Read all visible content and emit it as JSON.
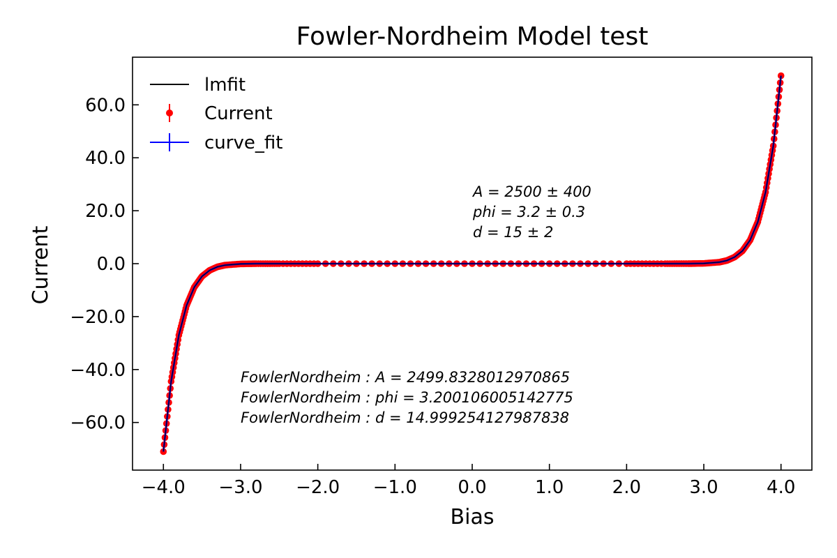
{
  "chart_data": {
    "type": "line",
    "title": "Fowler-Nordheim Model test",
    "xlabel": "Bias",
    "ylabel": "Current",
    "xlim": [
      -4.4,
      4.4
    ],
    "ylim": [
      -78,
      78
    ],
    "x_ticks": [
      -4.0,
      -3.0,
      -2.0,
      -1.0,
      0.0,
      1.0,
      2.0,
      3.0,
      4.0
    ],
    "x_tick_labels": [
      "−4.0",
      "−3.0",
      "−2.0",
      "−1.0",
      "0.0",
      "1.0",
      "2.0",
      "3.0",
      "4.0"
    ],
    "y_ticks": [
      -60,
      -40,
      -20,
      0,
      20,
      40,
      60
    ],
    "y_tick_labels": [
      "−60.0",
      "−40.0",
      "−20.0",
      "0.0",
      "20.0",
      "40.0",
      "60.0"
    ],
    "grid": false,
    "legend_position": "top-left",
    "series": [
      {
        "name": "lmfit",
        "color": "#000000",
        "style": "line"
      },
      {
        "name": "Current",
        "color": "#ff0000",
        "style": "points-with-errorbars"
      },
      {
        "name": "curve_fit",
        "color": "#0000ff",
        "style": "line-with-errorbars"
      }
    ],
    "x": [
      -4.0,
      -3.9,
      -3.8,
      -3.7,
      -3.6,
      -3.5,
      -3.4,
      -3.3,
      -3.2,
      -3.0,
      -2.8,
      -2.5,
      -2.0,
      -1.0,
      0.0,
      1.0,
      2.0,
      2.5,
      2.8,
      3.0,
      3.2,
      3.3,
      3.4,
      3.5,
      3.6,
      3.7,
      3.8,
      3.9,
      4.0
    ],
    "y": [
      -71.0,
      -44.5,
      -27.0,
      -15.8,
      -8.9,
      -4.8,
      -2.5,
      -1.2,
      -0.55,
      -0.1,
      -0.01,
      0.0,
      0.0,
      0.0,
      0.0,
      0.0,
      0.0,
      0.0,
      0.01,
      0.1,
      0.55,
      1.2,
      2.5,
      4.8,
      8.9,
      15.8,
      27.0,
      44.5,
      71.0
    ],
    "annotations": [
      {
        "lines": [
          "A = 2500 ± 400",
          "phi = 3.2 ± 0.3",
          "d = 15 ± 2"
        ]
      },
      {
        "lines": [
          "FowlerNordheim : A = 2499.8328012970865",
          "FowlerNordheim : phi = 3.200106005142775",
          "FowlerNordheim : d = 14.999254127987838"
        ]
      }
    ]
  }
}
